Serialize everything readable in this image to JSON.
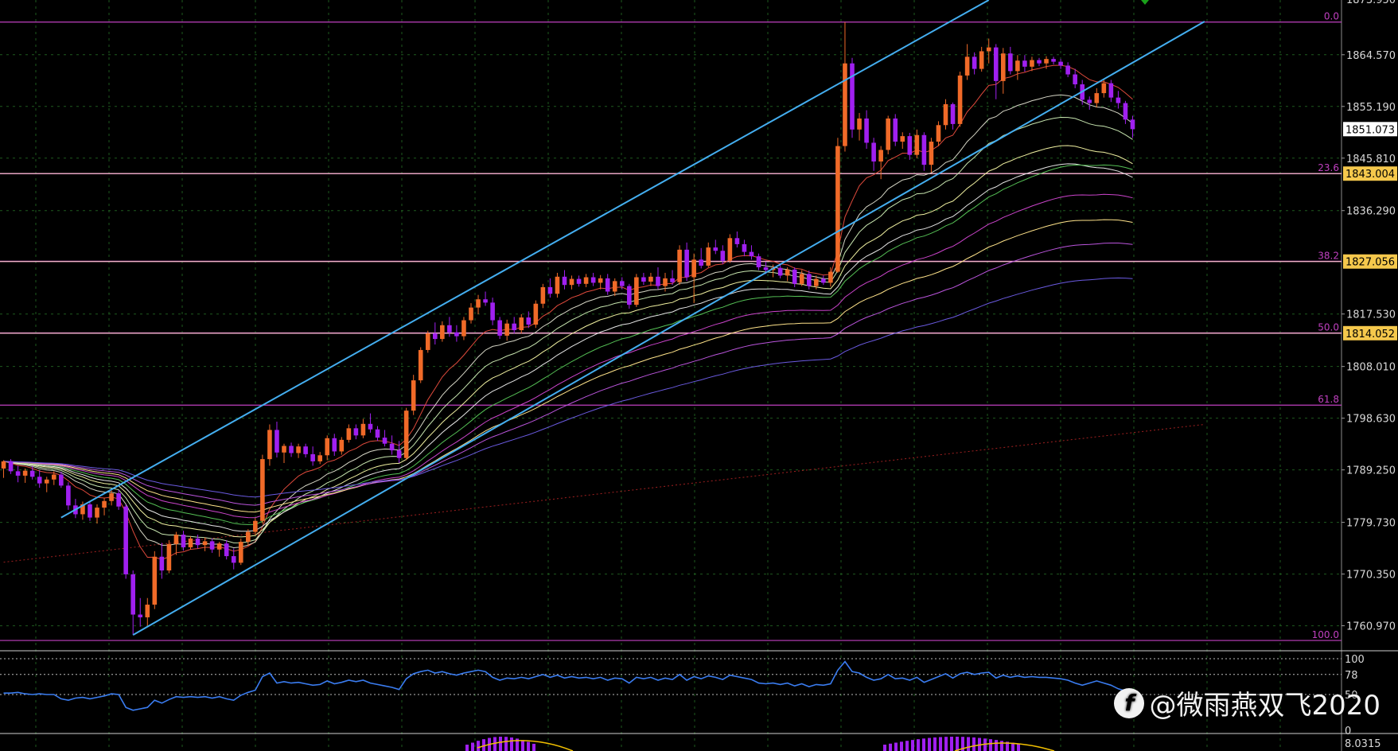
{
  "chart_data": {
    "type": "candlestick",
    "instrument_hint": "gold",
    "price_axis": {
      "ticks": [
        "1864.570",
        "1855.190",
        "1845.810",
        "1836.290",
        "1817.530",
        "1808.010",
        "1798.630",
        "1789.250",
        "1779.730",
        "1770.350",
        "1760.970"
      ],
      "tick_values": [
        1864.57,
        1855.19,
        1845.81,
        1836.29,
        1817.53,
        1808.01,
        1798.63,
        1789.25,
        1779.73,
        1770.35,
        1760.97
      ],
      "top_partial_label": "1873.950",
      "ylim": [
        1757.3,
        1874.5
      ]
    },
    "price_tags": [
      {
        "label": "1851.073",
        "value": 1851.073,
        "bg": "#ffffff"
      },
      {
        "label": "1843.004",
        "value": 1843.004,
        "bg": "#f5c84c"
      },
      {
        "label": "1827.056",
        "value": 1827.056,
        "bg": "#f5c84c"
      },
      {
        "label": "1814.052",
        "value": 1814.052,
        "bg": "#f5c84c"
      }
    ],
    "fibonacci": {
      "color": "#c040c0",
      "levels": [
        {
          "label": "0.0",
          "value": 1870.5
        },
        {
          "label": "23.6",
          "value": 1843.0
        },
        {
          "label": "38.2",
          "value": 1827.1
        },
        {
          "label": "50.0",
          "value": 1814.1
        },
        {
          "label": "61.8",
          "value": 1801.0
        },
        {
          "label": "100.0",
          "value": 1758.3
        }
      ]
    },
    "candles": [
      [
        1789.5,
        1791.0,
        1787.8,
        1790.8
      ],
      [
        1790.8,
        1791.2,
        1788.5,
        1789.0
      ],
      [
        1789.0,
        1790.0,
        1787.0,
        1788.2
      ],
      [
        1788.2,
        1789.5,
        1786.9,
        1789.1
      ],
      [
        1789.1,
        1790.0,
        1787.5,
        1788.0
      ],
      [
        1788.0,
        1789.2,
        1786.0,
        1786.8
      ],
      [
        1786.8,
        1788.0,
        1785.2,
        1787.5
      ],
      [
        1787.5,
        1789.0,
        1786.5,
        1788.4
      ],
      [
        1788.4,
        1788.9,
        1786.0,
        1786.4
      ],
      [
        1786.4,
        1787.0,
        1782.0,
        1782.8
      ],
      [
        1782.8,
        1784.0,
        1780.5,
        1781.2
      ],
      [
        1781.2,
        1783.5,
        1780.2,
        1783.0
      ],
      [
        1783.0,
        1783.4,
        1780.0,
        1780.6
      ],
      [
        1780.6,
        1783.0,
        1779.5,
        1782.4
      ],
      [
        1782.4,
        1784.2,
        1781.0,
        1783.6
      ],
      [
        1783.6,
        1785.5,
        1782.8,
        1785.0
      ],
      [
        1785.0,
        1785.6,
        1782.0,
        1782.6
      ],
      [
        1782.6,
        1783.0,
        1769.5,
        1770.3
      ],
      [
        1770.3,
        1771.0,
        1759.3,
        1763.0
      ],
      [
        1763.0,
        1766.0,
        1760.8,
        1762.5
      ],
      [
        1762.5,
        1766.0,
        1761.0,
        1764.8
      ],
      [
        1764.8,
        1774.5,
        1764.0,
        1773.5
      ],
      [
        1773.5,
        1776.0,
        1769.5,
        1771.0
      ],
      [
        1771.0,
        1776.5,
        1770.5,
        1775.8
      ],
      [
        1775.8,
        1778.0,
        1773.8,
        1777.5
      ],
      [
        1777.5,
        1778.2,
        1774.6,
        1775.2
      ],
      [
        1775.2,
        1777.2,
        1774.8,
        1776.8
      ],
      [
        1776.8,
        1777.5,
        1775.0,
        1775.6
      ],
      [
        1775.6,
        1777.0,
        1774.5,
        1776.3
      ],
      [
        1776.3,
        1776.8,
        1774.2,
        1774.8
      ],
      [
        1774.8,
        1776.2,
        1773.5,
        1775.9
      ],
      [
        1775.9,
        1776.5,
        1773.0,
        1773.6
      ],
      [
        1773.6,
        1775.0,
        1771.2,
        1772.4
      ],
      [
        1772.4,
        1776.8,
        1772.0,
        1776.2
      ],
      [
        1776.2,
        1778.5,
        1775.5,
        1778.0
      ],
      [
        1778.0,
        1780.5,
        1777.4,
        1780.0
      ],
      [
        1780.0,
        1792.0,
        1779.5,
        1791.2
      ],
      [
        1791.2,
        1797.5,
        1790.0,
        1796.5
      ],
      [
        1796.5,
        1798.0,
        1791.5,
        1792.4
      ],
      [
        1792.4,
        1794.0,
        1790.5,
        1793.6
      ],
      [
        1793.6,
        1794.2,
        1791.6,
        1792.3
      ],
      [
        1792.3,
        1794.0,
        1791.4,
        1793.5
      ],
      [
        1793.5,
        1794.0,
        1791.5,
        1792.1
      ],
      [
        1792.1,
        1793.5,
        1790.0,
        1790.8
      ],
      [
        1790.8,
        1792.5,
        1790.3,
        1791.9
      ],
      [
        1791.9,
        1795.5,
        1791.0,
        1795.0
      ],
      [
        1795.0,
        1795.8,
        1791.8,
        1792.6
      ],
      [
        1792.6,
        1795.2,
        1792.0,
        1794.7
      ],
      [
        1794.7,
        1797.5,
        1794.2,
        1796.8
      ],
      [
        1796.8,
        1797.5,
        1794.8,
        1795.5
      ],
      [
        1795.5,
        1798.5,
        1795.0,
        1797.6
      ],
      [
        1797.6,
        1799.5,
        1796.0,
        1796.6
      ],
      [
        1796.6,
        1797.2,
        1794.5,
        1795.1
      ],
      [
        1795.1,
        1796.5,
        1793.5,
        1794.0
      ],
      [
        1794.0,
        1795.5,
        1792.0,
        1792.8
      ],
      [
        1792.8,
        1794.5,
        1790.5,
        1791.4
      ],
      [
        1791.4,
        1800.5,
        1791.0,
        1800.0
      ],
      [
        1800.0,
        1806.5,
        1799.2,
        1805.5
      ],
      [
        1805.5,
        1811.5,
        1805.0,
        1811.0
      ],
      [
        1811.0,
        1814.5,
        1810.5,
        1814.0
      ],
      [
        1814.0,
        1816.0,
        1812.0,
        1813.0
      ],
      [
        1813.0,
        1816.2,
        1812.5,
        1815.5
      ],
      [
        1815.5,
        1817.0,
        1813.4,
        1814.2
      ],
      [
        1814.2,
        1815.5,
        1812.5,
        1813.5
      ],
      [
        1813.5,
        1817.0,
        1812.8,
        1816.4
      ],
      [
        1816.4,
        1819.5,
        1815.8,
        1818.7
      ],
      [
        1818.7,
        1821.0,
        1817.5,
        1820.2
      ],
      [
        1820.2,
        1821.6,
        1819.0,
        1819.6
      ],
      [
        1819.6,
        1820.5,
        1815.5,
        1816.4
      ],
      [
        1816.4,
        1817.0,
        1813.0,
        1813.6
      ],
      [
        1813.6,
        1816.5,
        1812.7,
        1815.8
      ],
      [
        1815.8,
        1817.0,
        1814.0,
        1814.6
      ],
      [
        1814.6,
        1817.5,
        1814.0,
        1816.9
      ],
      [
        1816.9,
        1818.0,
        1815.0,
        1815.6
      ],
      [
        1815.6,
        1820.0,
        1815.0,
        1819.4
      ],
      [
        1819.4,
        1823.0,
        1818.6,
        1822.4
      ],
      [
        1822.4,
        1824.0,
        1820.5,
        1821.2
      ],
      [
        1821.2,
        1825.0,
        1820.5,
        1824.3
      ],
      [
        1824.3,
        1825.5,
        1822.0,
        1822.8
      ],
      [
        1822.8,
        1824.5,
        1822.0,
        1823.9
      ],
      [
        1823.9,
        1824.5,
        1822.5,
        1823.0
      ],
      [
        1823.0,
        1824.8,
        1822.4,
        1824.2
      ],
      [
        1824.2,
        1825.0,
        1822.6,
        1823.2
      ],
      [
        1823.2,
        1824.6,
        1822.0,
        1824.0
      ],
      [
        1824.0,
        1824.8,
        1821.0,
        1821.6
      ],
      [
        1821.6,
        1824.0,
        1820.8,
        1823.5
      ],
      [
        1823.5,
        1824.2,
        1822.0,
        1822.6
      ],
      [
        1822.6,
        1823.0,
        1818.5,
        1819.2
      ],
      [
        1819.2,
        1824.8,
        1818.8,
        1824.2
      ],
      [
        1824.2,
        1825.0,
        1822.8,
        1823.4
      ],
      [
        1823.4,
        1825.0,
        1822.6,
        1824.3
      ],
      [
        1824.3,
        1826.0,
        1822.0,
        1822.6
      ],
      [
        1822.6,
        1825.0,
        1821.6,
        1824.0
      ],
      [
        1824.0,
        1825.5,
        1822.8,
        1823.3
      ],
      [
        1823.3,
        1830.0,
        1822.8,
        1829.2
      ],
      [
        1829.2,
        1830.5,
        1823.5,
        1824.2
      ],
      [
        1824.2,
        1828.5,
        1819.5,
        1827.4
      ],
      [
        1827.4,
        1829.5,
        1825.8,
        1826.3
      ],
      [
        1826.3,
        1830.5,
        1826.0,
        1829.6
      ],
      [
        1829.6,
        1831.0,
        1828.4,
        1829.0
      ],
      [
        1829.0,
        1830.0,
        1826.6,
        1827.2
      ],
      [
        1827.2,
        1832.0,
        1826.8,
        1831.3
      ],
      [
        1831.3,
        1832.5,
        1829.6,
        1830.2
      ],
      [
        1830.2,
        1831.0,
        1828.0,
        1828.8
      ],
      [
        1828.8,
        1830.0,
        1827.4,
        1828.0
      ],
      [
        1828.0,
        1828.5,
        1825.5,
        1826.0
      ],
      [
        1826.0,
        1827.0,
        1824.8,
        1825.5
      ],
      [
        1825.5,
        1826.5,
        1824.2,
        1825.9
      ],
      [
        1825.9,
        1826.5,
        1824.0,
        1824.5
      ],
      [
        1824.5,
        1826.0,
        1823.5,
        1825.6
      ],
      [
        1825.6,
        1826.0,
        1822.4,
        1823.0
      ],
      [
        1823.0,
        1825.5,
        1822.6,
        1824.8
      ],
      [
        1824.8,
        1825.4,
        1822.0,
        1822.6
      ],
      [
        1822.6,
        1824.5,
        1822.0,
        1823.9
      ],
      [
        1823.9,
        1824.5,
        1822.8,
        1823.2
      ],
      [
        1823.2,
        1826.0,
        1822.5,
        1825.2
      ],
      [
        1825.2,
        1849.5,
        1825.0,
        1848.0
      ],
      [
        1848.0,
        1870.5,
        1847.0,
        1863.0
      ],
      [
        1863.0,
        1864.0,
        1849.5,
        1851.0
      ],
      [
        1851.0,
        1854.0,
        1849.0,
        1853.0
      ],
      [
        1853.0,
        1854.5,
        1847.5,
        1848.6
      ],
      [
        1848.6,
        1849.5,
        1843.5,
        1845.2
      ],
      [
        1845.2,
        1848.0,
        1842.0,
        1847.3
      ],
      [
        1847.3,
        1853.5,
        1846.5,
        1853.0
      ],
      [
        1853.0,
        1853.8,
        1848.0,
        1848.8
      ],
      [
        1848.8,
        1850.5,
        1847.5,
        1849.8
      ],
      [
        1849.8,
        1850.4,
        1845.5,
        1846.4
      ],
      [
        1846.4,
        1851.0,
        1845.8,
        1850.0
      ],
      [
        1850.0,
        1850.5,
        1843.5,
        1844.6
      ],
      [
        1844.6,
        1849.5,
        1843.2,
        1848.8
      ],
      [
        1848.8,
        1852.5,
        1848.0,
        1851.8
      ],
      [
        1851.8,
        1856.5,
        1851.0,
        1855.6
      ],
      [
        1855.6,
        1855.9,
        1851.0,
        1852.0
      ],
      [
        1852.0,
        1861.5,
        1851.5,
        1860.8
      ],
      [
        1860.8,
        1866.5,
        1860.0,
        1864.2
      ],
      [
        1864.2,
        1865.0,
        1861.0,
        1862.0
      ],
      [
        1862.0,
        1866.0,
        1861.5,
        1865.2
      ],
      [
        1865.2,
        1867.5,
        1863.0,
        1865.9
      ],
      [
        1865.9,
        1866.5,
        1856.5,
        1859.8
      ],
      [
        1859.8,
        1865.8,
        1857.5,
        1864.8
      ],
      [
        1864.8,
        1866.0,
        1861.0,
        1861.6
      ],
      [
        1861.6,
        1864.5,
        1860.0,
        1863.5
      ],
      [
        1863.5,
        1864.5,
        1861.5,
        1862.4
      ],
      [
        1862.4,
        1864.2,
        1861.6,
        1863.6
      ],
      [
        1863.6,
        1864.0,
        1862.5,
        1863.0
      ],
      [
        1863.0,
        1864.3,
        1862.0,
        1863.8
      ],
      [
        1863.8,
        1864.2,
        1862.8,
        1863.3
      ],
      [
        1863.3,
        1863.8,
        1862.0,
        1862.6
      ],
      [
        1862.6,
        1863.2,
        1860.5,
        1861.0
      ],
      [
        1861.0,
        1862.0,
        1858.5,
        1859.2
      ],
      [
        1859.2,
        1860.0,
        1855.5,
        1856.4
      ],
      [
        1856.4,
        1857.0,
        1854.6,
        1855.8
      ],
      [
        1855.8,
        1858.5,
        1855.0,
        1857.6
      ],
      [
        1857.6,
        1860.0,
        1856.8,
        1859.4
      ],
      [
        1859.4,
        1860.0,
        1856.0,
        1856.8
      ],
      [
        1856.8,
        1858.0,
        1854.8,
        1855.8
      ],
      [
        1855.8,
        1856.2,
        1852.0,
        1852.8
      ],
      [
        1852.8,
        1853.5,
        1849.5,
        1851.07
      ]
    ],
    "ema_ribbon": {
      "colors": [
        "#e04a3c",
        "#d6d6c6",
        "#c8e6b0",
        "#f0f0a0",
        "#e6e6e6",
        "#55c055",
        "#cc44cc",
        "#ffe38a",
        "#bb55dd",
        "#6a5ae0"
      ],
      "end_values": [
        1856.5,
        1852.0,
        1849.0,
        1844.5,
        1842.0,
        1843.5,
        1838.3,
        1833.8,
        1829.8,
        1823.6
      ]
    },
    "channel": {
      "color": "#44aef0",
      "upper": [
        [
          8,
          1780.6
        ],
        [
          137,
          1874.5
        ]
      ],
      "lower": [
        [
          18,
          1759.3
        ],
        [
          167,
          1870.6
        ]
      ]
    },
    "long_trendline": {
      "color": "#a02020",
      "points": [
        [
          0,
          1772.5
        ],
        [
          167,
          1797.5
        ]
      ]
    },
    "rsi": {
      "type": "line",
      "levels_labels": [
        "100",
        "78",
        "50",
        "0"
      ],
      "values": [
        52,
        52,
        53,
        51,
        50,
        51,
        50,
        50,
        44,
        42,
        45,
        46,
        44,
        46,
        48,
        51,
        50,
        32,
        28,
        30,
        32,
        42,
        38,
        43,
        47,
        46,
        47,
        46,
        47,
        45,
        47,
        44,
        42,
        49,
        53,
        56,
        75,
        80,
        66,
        68,
        66,
        67,
        65,
        63,
        64,
        69,
        65,
        67,
        70,
        68,
        70,
        66,
        64,
        62,
        60,
        57,
        72,
        79,
        82,
        84,
        80,
        82,
        79,
        77,
        80,
        82,
        84,
        82,
        74,
        70,
        73,
        72,
        74,
        72,
        75,
        78,
        74,
        77,
        73,
        75,
        73,
        74,
        72,
        74,
        70,
        73,
        72,
        66,
        74,
        72,
        74,
        70,
        73,
        71,
        78,
        70,
        75,
        72,
        76,
        74,
        71,
        77,
        75,
        73,
        71,
        66,
        65,
        66,
        64,
        66,
        62,
        65,
        61,
        64,
        63,
        65,
        84,
        96,
        82,
        80,
        74,
        70,
        72,
        78,
        72,
        73,
        70,
        74,
        67,
        71,
        75,
        79,
        73,
        79,
        81,
        78,
        80,
        81,
        73,
        77,
        74,
        76,
        74,
        75,
        74,
        74,
        73,
        72,
        70,
        66,
        63,
        66,
        69,
        66,
        63,
        58,
        55
      ]
    }
  },
  "watermark": {
    "text": "@微雨燕双飞2020",
    "logo_glyph": "f"
  },
  "sub_panel": {
    "label": "8.0315"
  }
}
